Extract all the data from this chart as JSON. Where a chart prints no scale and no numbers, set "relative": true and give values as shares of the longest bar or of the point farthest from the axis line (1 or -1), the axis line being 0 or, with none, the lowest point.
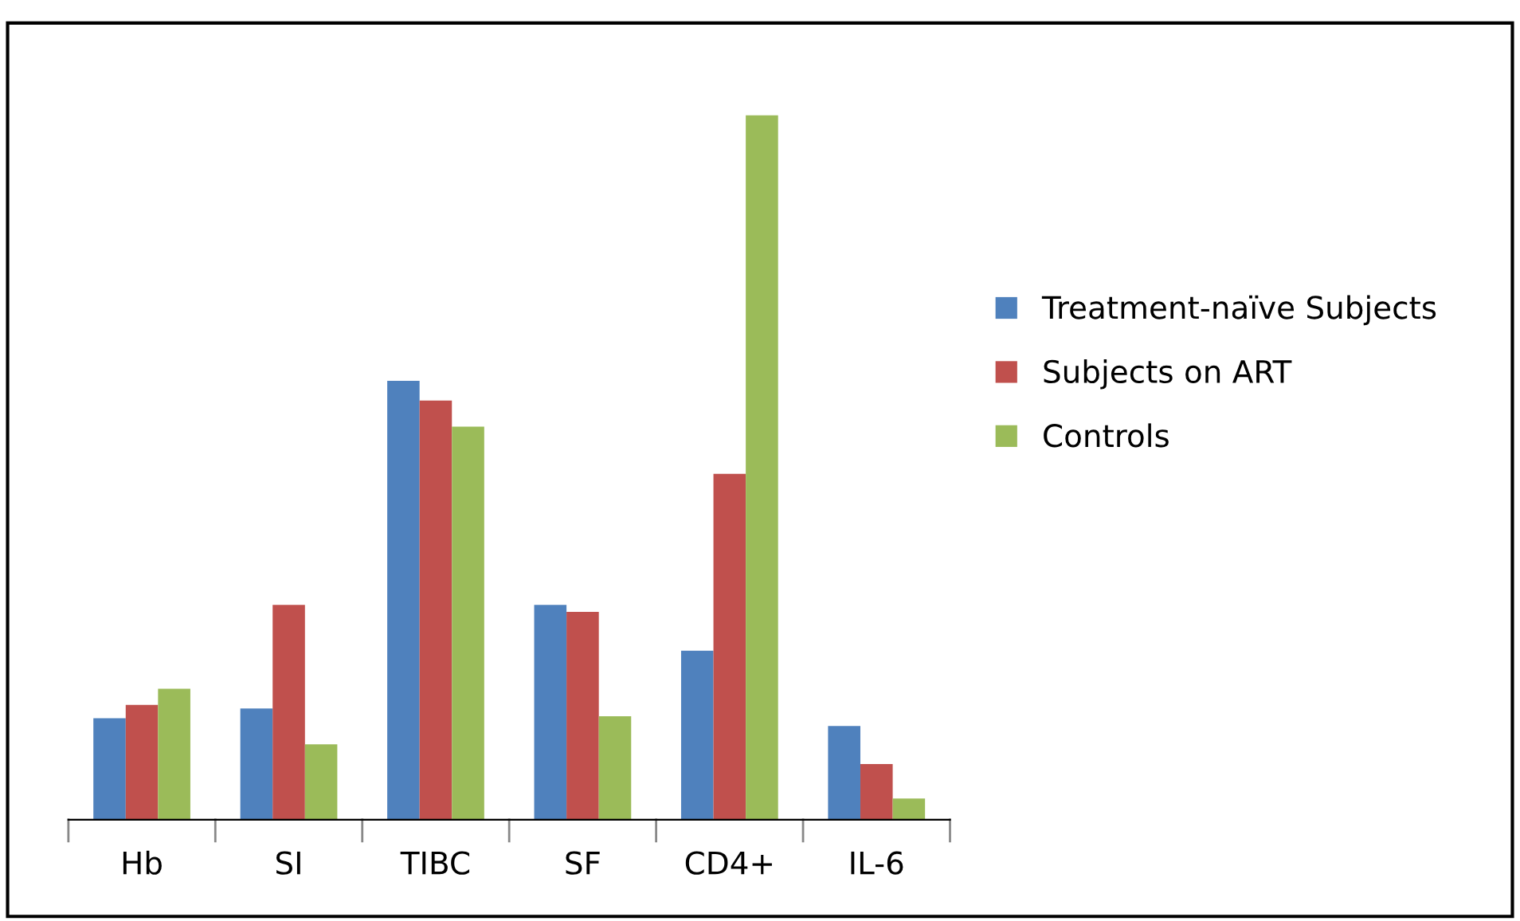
{
  "chart_data": {
    "type": "bar",
    "relative": true,
    "categories": [
      "Hb",
      "SI",
      "TIBC",
      "SF",
      "CD4+",
      "IL-6"
    ],
    "series": [
      {
        "name": "Treatment-naïve Subjects",
        "color": "#4f81bd",
        "values": [
          0.144,
          0.158,
          0.623,
          0.305,
          0.24,
          0.133
        ]
      },
      {
        "name": "Subjects on ART",
        "color": "#c0504d",
        "values": [
          0.163,
          0.305,
          0.595,
          0.295,
          0.491,
          0.079
        ]
      },
      {
        "name": "Controls",
        "color": "#9bbb59",
        "values": [
          0.186,
          0.107,
          0.558,
          0.147,
          1,
          0.03
        ]
      }
    ],
    "legend": "right",
    "grid": false
  }
}
